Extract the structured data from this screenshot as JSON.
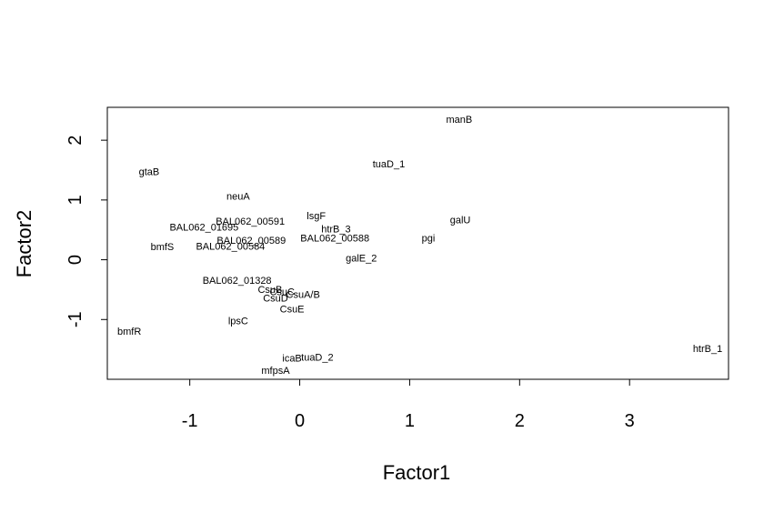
{
  "chart_data": {
    "type": "scatter",
    "xlabel": "Factor1",
    "ylabel": "Factor2",
    "xlim": [
      -1.75,
      3.9
    ],
    "ylim": [
      -2.0,
      2.55
    ],
    "xticks": [
      "-1",
      "0",
      "1",
      "2",
      "3"
    ],
    "xtick_values": [
      -1,
      0,
      1,
      2,
      3
    ],
    "yticks": [
      "-1",
      "0",
      "1",
      "2"
    ],
    "ytick_values": [
      -1,
      0,
      1,
      2
    ],
    "grid": false,
    "points": [
      {
        "label": "manB",
        "x": 1.45,
        "y": 2.35
      },
      {
        "label": "tuaD_1",
        "x": 0.81,
        "y": 1.61
      },
      {
        "label": "gtaB",
        "x": -1.37,
        "y": 1.48
      },
      {
        "label": "neuA",
        "x": -0.56,
        "y": 1.07
      },
      {
        "label": "lsgF",
        "x": 0.15,
        "y": 0.74
      },
      {
        "label": "galU",
        "x": 1.46,
        "y": 0.67
      },
      {
        "label": "BAL062_00591",
        "x": -0.45,
        "y": 0.65
      },
      {
        "label": "BAL062_01695",
        "x": -0.87,
        "y": 0.55
      },
      {
        "label": "htrB_3",
        "x": 0.33,
        "y": 0.52
      },
      {
        "label": "BAL062_00588",
        "x": 0.32,
        "y": 0.37
      },
      {
        "label": "pgi",
        "x": 1.17,
        "y": 0.37
      },
      {
        "label": "BAL062_00589",
        "x": -0.44,
        "y": 0.33
      },
      {
        "label": "bmfS",
        "x": -1.25,
        "y": 0.22
      },
      {
        "label": "BAL062_00584",
        "x": -0.63,
        "y": 0.23
      },
      {
        "label": "galE_2",
        "x": 0.56,
        "y": 0.03
      },
      {
        "label": "BAL062_01328",
        "x": -0.57,
        "y": -0.34
      },
      {
        "label": "CsuB",
        "x": -0.27,
        "y": -0.49
      },
      {
        "label": "CsuC",
        "x": -0.16,
        "y": -0.53
      },
      {
        "label": "CsuA/B",
        "x": 0.03,
        "y": -0.58
      },
      {
        "label": "CsuD",
        "x": -0.22,
        "y": -0.64
      },
      {
        "label": "CsuE",
        "x": -0.07,
        "y": -0.82
      },
      {
        "label": "lpsC",
        "x": -0.56,
        "y": -1.02
      },
      {
        "label": "bmfR",
        "x": -1.55,
        "y": -1.19
      },
      {
        "label": "htrB_1",
        "x": 3.71,
        "y": -1.48
      },
      {
        "label": "icaB",
        "x": -0.07,
        "y": -1.64
      },
      {
        "label": "tuaD_2",
        "x": 0.16,
        "y": -1.63
      },
      {
        "label": "mfpsA",
        "x": -0.22,
        "y": -1.85
      }
    ]
  }
}
